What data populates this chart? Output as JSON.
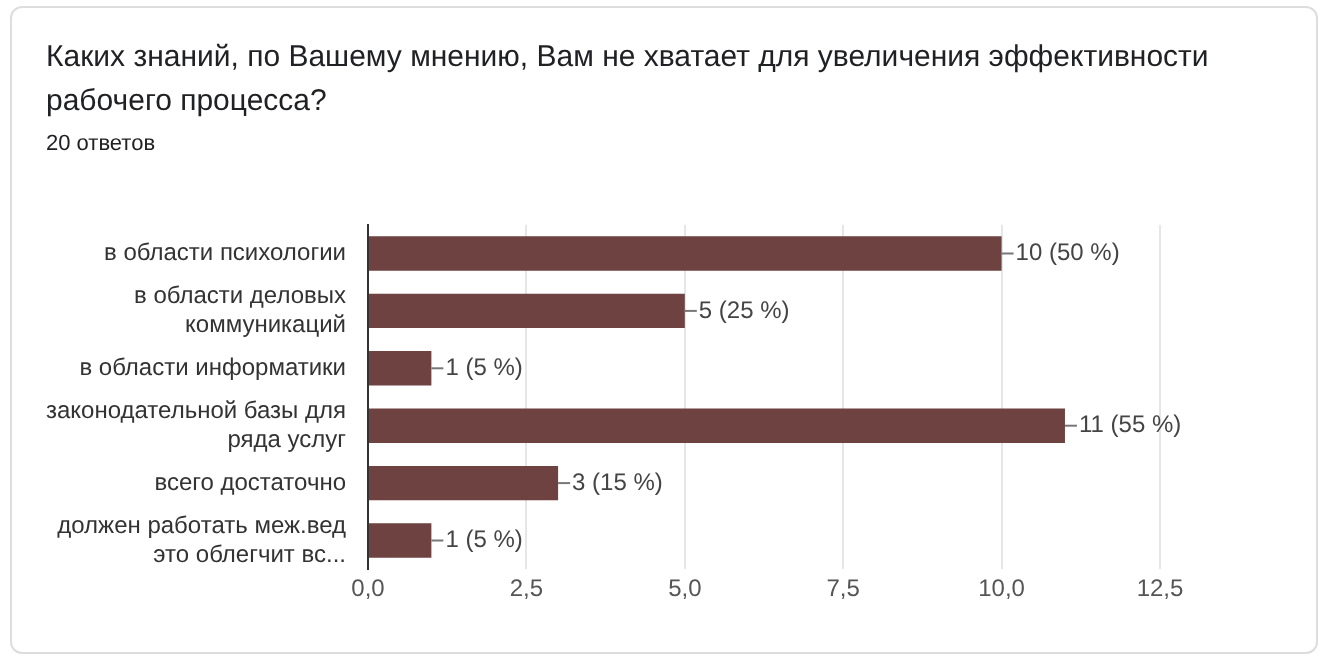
{
  "chart_data": {
    "type": "bar",
    "orientation": "horizontal",
    "title": "Каких знаний, по Вашему мнению, Вам не хватает для увеличения эффективности рабочего процесса?",
    "subtitle": "20 ответов",
    "categories": [
      "в области психологии",
      "в области деловых коммуникаций",
      "в области информатики",
      "законодательной базы для ряда услуг",
      "всего достаточно",
      "должен работать меж.вед это облегчит вс..."
    ],
    "values": [
      10,
      5,
      1,
      11,
      3,
      1
    ],
    "value_labels": [
      "10 (50 %)",
      "5 (25 %)",
      "1 (5 %)",
      "11 (55 %)",
      "3 (15 %)",
      "1 (5 %)"
    ],
    "color": "#6d4240",
    "xlim": [
      0,
      12.5
    ],
    "xticks": [
      {
        "value": 0,
        "label": "0,0"
      },
      {
        "value": 2.5,
        "label": "2,5"
      },
      {
        "value": 5,
        "label": "5,0"
      },
      {
        "value": 7.5,
        "label": "7,5"
      },
      {
        "value": 10,
        "label": "10,0"
      },
      {
        "value": 12.5,
        "label": "12,5"
      }
    ],
    "grid": "x",
    "legend": false
  }
}
